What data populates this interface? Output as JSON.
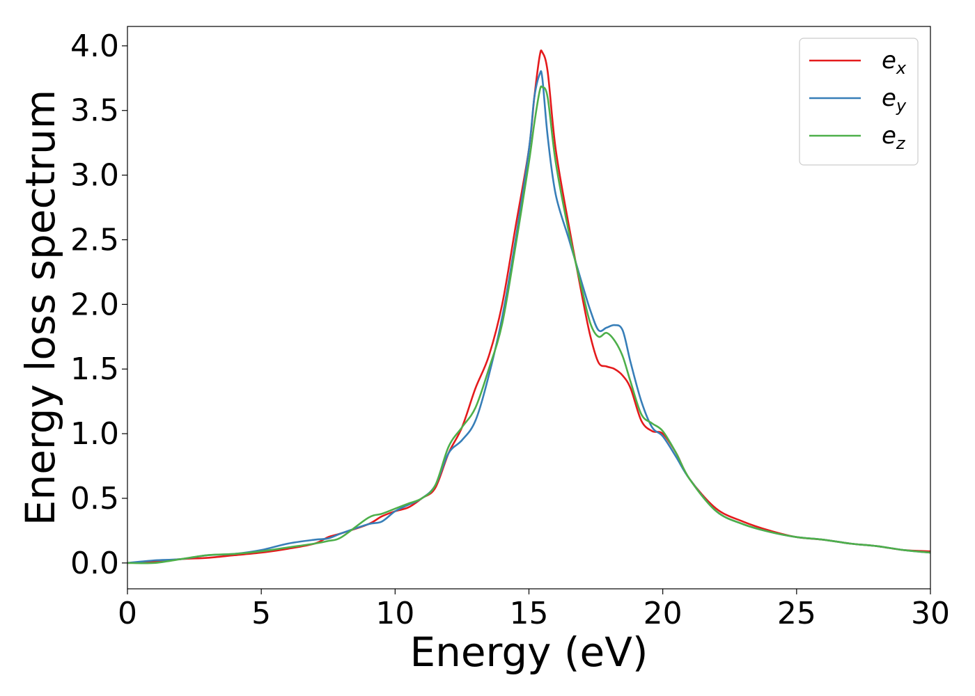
{
  "chart_data": {
    "type": "line",
    "xlabel": "Energy (eV)",
    "ylabel": "Energy loss spectrum",
    "xlim": [
      0,
      30
    ],
    "ylim": [
      -0.2,
      4.15
    ],
    "xticks": [
      0,
      5,
      10,
      15,
      20,
      25,
      30
    ],
    "yticks": [
      0.0,
      0.5,
      1.0,
      1.5,
      2.0,
      2.5,
      3.0,
      3.5,
      4.0
    ],
    "grid": false,
    "legend_position": "top-right",
    "series": [
      {
        "name": "e_x",
        "legend_base": "e",
        "legend_sub": "x",
        "color": "#e41a1c",
        "x": [
          0,
          1,
          2,
          3,
          4,
          5,
          6,
          7,
          7.5,
          8,
          9,
          9.5,
          10,
          10.5,
          11,
          11.5,
          12,
          12.5,
          13,
          13.5,
          14,
          14.5,
          15,
          15.2,
          15.4,
          15.5,
          15.7,
          16,
          16.5,
          17,
          17.3,
          17.6,
          17.9,
          18.2,
          18.5,
          18.8,
          19.2,
          19.6,
          20,
          20.5,
          21,
          22,
          23,
          24,
          25,
          26,
          27,
          28,
          29,
          30
        ],
        "y": [
          0.0,
          0.01,
          0.03,
          0.04,
          0.06,
          0.08,
          0.11,
          0.15,
          0.2,
          0.23,
          0.3,
          0.36,
          0.4,
          0.43,
          0.5,
          0.58,
          0.85,
          1.05,
          1.35,
          1.6,
          2.0,
          2.6,
          3.2,
          3.6,
          3.92,
          3.95,
          3.8,
          3.2,
          2.6,
          2.05,
          1.75,
          1.55,
          1.52,
          1.5,
          1.45,
          1.35,
          1.1,
          1.02,
          1.0,
          0.85,
          0.65,
          0.42,
          0.32,
          0.25,
          0.2,
          0.18,
          0.15,
          0.13,
          0.1,
          0.09
        ]
      },
      {
        "name": "e_y",
        "legend_base": "e",
        "legend_sub": "y",
        "color": "#377eb8",
        "x": [
          0,
          1,
          2,
          3,
          4,
          5,
          6,
          7,
          7.5,
          8,
          9,
          9.5,
          10,
          10.5,
          11,
          11.5,
          12,
          12.5,
          13,
          13.5,
          14,
          14.5,
          15,
          15.2,
          15.4,
          15.5,
          15.7,
          16,
          16.5,
          17,
          17.3,
          17.6,
          17.9,
          18.2,
          18.5,
          18.8,
          19.2,
          19.6,
          20,
          20.5,
          21,
          22,
          23,
          24,
          25,
          26,
          27,
          28,
          29,
          30
        ],
        "y": [
          0.0,
          0.02,
          0.03,
          0.06,
          0.07,
          0.1,
          0.15,
          0.18,
          0.19,
          0.23,
          0.3,
          0.32,
          0.4,
          0.45,
          0.5,
          0.6,
          0.85,
          0.95,
          1.1,
          1.45,
          1.9,
          2.5,
          3.2,
          3.6,
          3.78,
          3.75,
          3.3,
          2.85,
          2.5,
          2.15,
          1.95,
          1.8,
          1.82,
          1.84,
          1.8,
          1.55,
          1.25,
          1.05,
          0.98,
          0.82,
          0.65,
          0.4,
          0.3,
          0.24,
          0.2,
          0.18,
          0.15,
          0.13,
          0.1,
          0.08
        ]
      },
      {
        "name": "e_z",
        "legend_base": "e",
        "legend_sub": "z",
        "color": "#4daf4a",
        "x": [
          0,
          1,
          2,
          3,
          4,
          5,
          6,
          7,
          7.5,
          8,
          9,
          9.5,
          10,
          10.5,
          11,
          11.5,
          12,
          12.5,
          13,
          13.5,
          14,
          14.5,
          15,
          15.2,
          15.4,
          15.5,
          15.7,
          16,
          16.5,
          17,
          17.3,
          17.6,
          17.9,
          18.2,
          18.5,
          18.8,
          19.2,
          19.6,
          20,
          20.5,
          21,
          22,
          23,
          24,
          25,
          26,
          27,
          28,
          29,
          30
        ],
        "y": [
          0.0,
          0.0,
          0.03,
          0.06,
          0.07,
          0.09,
          0.12,
          0.15,
          0.17,
          0.2,
          0.35,
          0.38,
          0.42,
          0.46,
          0.5,
          0.6,
          0.9,
          1.05,
          1.2,
          1.5,
          1.85,
          2.45,
          3.1,
          3.4,
          3.65,
          3.68,
          3.6,
          3.1,
          2.55,
          2.1,
          1.85,
          1.75,
          1.78,
          1.72,
          1.6,
          1.4,
          1.15,
          1.08,
          1.02,
          0.85,
          0.65,
          0.4,
          0.3,
          0.24,
          0.2,
          0.18,
          0.15,
          0.13,
          0.1,
          0.08
        ]
      }
    ]
  }
}
